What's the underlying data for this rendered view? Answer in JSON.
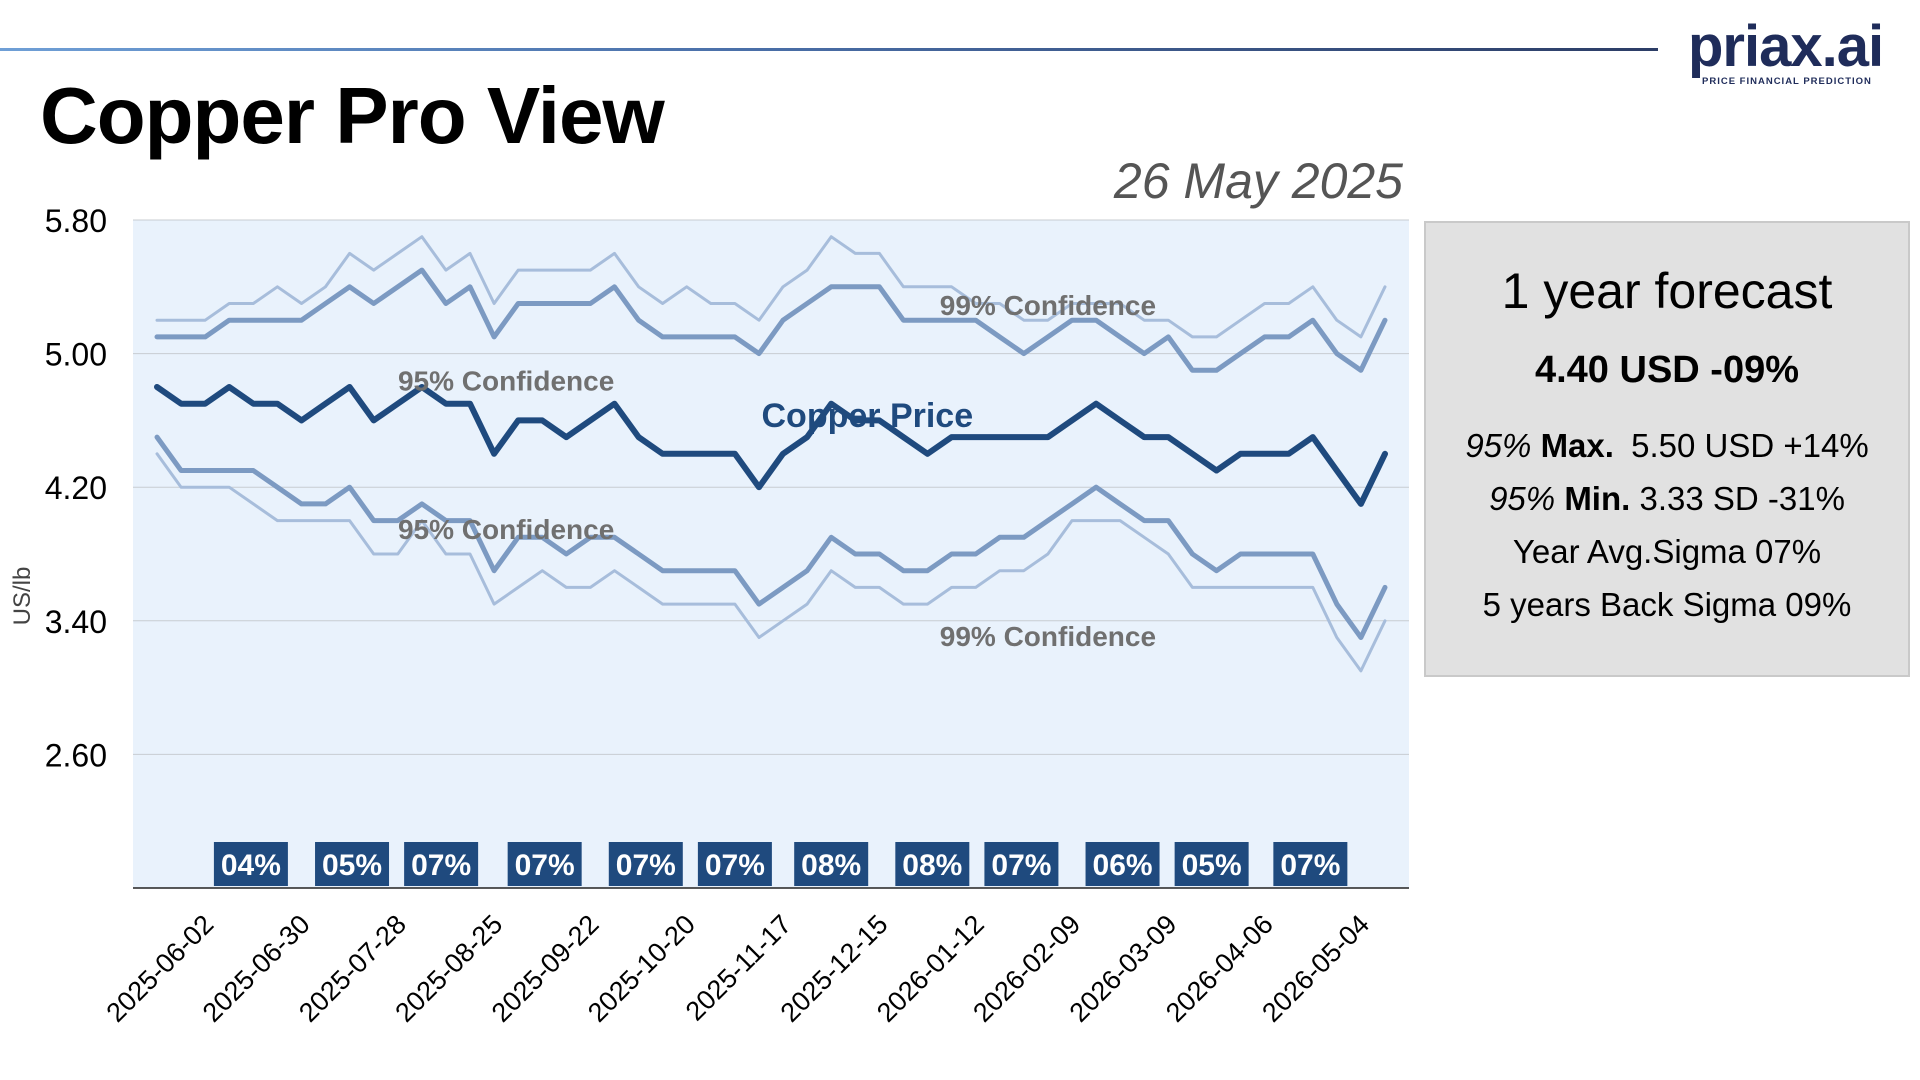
{
  "header": {
    "title": "Copper Pro View",
    "date": "26 May 2025",
    "logo_text": "priax.ai",
    "logo_sub": "PRICE FINANCIAL PREDICTION"
  },
  "forecast": {
    "title": "1 year forecast",
    "main": "4.40 USD -09%",
    "max_pct": "95%",
    "max_label": "Max.",
    "max_value": "5.50 USD +14%",
    "min_pct": "95%",
    "min_label": "Min.",
    "min_value": "3.33 SD -31%",
    "year_avg": "Year Avg.Sigma 07%",
    "back_sigma": "5 years Back Sigma 09%"
  },
  "chart_data": {
    "type": "line",
    "ylabel": "US/lb",
    "ylim": [
      1.8,
      5.8
    ],
    "yticks": [
      "5.80",
      "5.00",
      "4.20",
      "3.40",
      "2.60"
    ],
    "ytick_values": [
      5.8,
      5.0,
      4.2,
      3.4,
      2.6
    ],
    "grid": true,
    "plot_background": "#e9f2fc",
    "xticks": [
      "2025-06-02",
      "2025-06-30",
      "2025-07-28",
      "2025-08-25",
      "2025-09-22",
      "2025-10-20",
      "2025-11-17",
      "2025-12-15",
      "2026-01-12",
      "2026-02-09",
      "2026-03-09",
      "2026-04-06",
      "2026-05-04"
    ],
    "series": [
      {
        "name": "99% Confidence",
        "color": "#a7bddb",
        "values": [
          5.2,
          5.2,
          5.2,
          5.3,
          5.3,
          5.4,
          5.3,
          5.4,
          5.6,
          5.5,
          5.6,
          5.7,
          5.5,
          5.6,
          5.3,
          5.5,
          5.5,
          5.5,
          5.5,
          5.6,
          5.4,
          5.3,
          5.4,
          5.3,
          5.3,
          5.2,
          5.4,
          5.5,
          5.7,
          5.6,
          5.6,
          5.4,
          5.4,
          5.4,
          5.3,
          5.3,
          5.2,
          5.2,
          5.3,
          5.3,
          5.3,
          5.2,
          5.2,
          5.1,
          5.1,
          5.2,
          5.3,
          5.3,
          5.4,
          5.2,
          5.1,
          5.4
        ]
      },
      {
        "name": "95% Confidence",
        "color": "#7c9ac2",
        "values": [
          5.1,
          5.1,
          5.1,
          5.2,
          5.2,
          5.2,
          5.2,
          5.3,
          5.4,
          5.3,
          5.4,
          5.5,
          5.3,
          5.4,
          5.1,
          5.3,
          5.3,
          5.3,
          5.3,
          5.4,
          5.2,
          5.1,
          5.1,
          5.1,
          5.1,
          5.0,
          5.2,
          5.3,
          5.4,
          5.4,
          5.4,
          5.2,
          5.2,
          5.2,
          5.2,
          5.1,
          5.0,
          5.1,
          5.2,
          5.2,
          5.1,
          5.0,
          5.1,
          4.9,
          4.9,
          5.0,
          5.1,
          5.1,
          5.2,
          5.0,
          4.9,
          5.2
        ]
      },
      {
        "name": "Copper Price",
        "color": "#1f4a7e",
        "values": [
          4.8,
          4.7,
          4.7,
          4.8,
          4.7,
          4.7,
          4.6,
          4.7,
          4.8,
          4.6,
          4.7,
          4.8,
          4.7,
          4.7,
          4.4,
          4.6,
          4.6,
          4.5,
          4.6,
          4.7,
          4.5,
          4.4,
          4.4,
          4.4,
          4.4,
          4.2,
          4.4,
          4.5,
          4.7,
          4.6,
          4.6,
          4.5,
          4.4,
          4.5,
          4.5,
          4.5,
          4.5,
          4.5,
          4.6,
          4.7,
          4.6,
          4.5,
          4.5,
          4.4,
          4.3,
          4.4,
          4.4,
          4.4,
          4.5,
          4.3,
          4.1,
          4.4
        ]
      },
      {
        "name": "95% Confidence",
        "color": "#7c9ac2",
        "values": [
          4.5,
          4.3,
          4.3,
          4.3,
          4.3,
          4.2,
          4.1,
          4.1,
          4.2,
          4.0,
          4.0,
          4.1,
          4.0,
          4.0,
          3.7,
          3.9,
          3.9,
          3.8,
          3.9,
          3.9,
          3.8,
          3.7,
          3.7,
          3.7,
          3.7,
          3.5,
          3.6,
          3.7,
          3.9,
          3.8,
          3.8,
          3.7,
          3.7,
          3.8,
          3.8,
          3.9,
          3.9,
          4.0,
          4.1,
          4.2,
          4.1,
          4.0,
          4.0,
          3.8,
          3.7,
          3.8,
          3.8,
          3.8,
          3.8,
          3.5,
          3.3,
          3.6
        ]
      },
      {
        "name": "99% Confidence",
        "color": "#a7bddb",
        "values": [
          4.4,
          4.2,
          4.2,
          4.2,
          4.1,
          4.0,
          4.0,
          4.0,
          4.0,
          3.8,
          3.8,
          4.0,
          3.8,
          3.8,
          3.5,
          3.6,
          3.7,
          3.6,
          3.6,
          3.7,
          3.6,
          3.5,
          3.5,
          3.5,
          3.5,
          3.3,
          3.4,
          3.5,
          3.7,
          3.6,
          3.6,
          3.5,
          3.5,
          3.6,
          3.6,
          3.7,
          3.7,
          3.8,
          4.0,
          4.0,
          4.0,
          3.9,
          3.8,
          3.6,
          3.6,
          3.6,
          3.6,
          3.6,
          3.6,
          3.3,
          3.1,
          3.4
        ]
      }
    ],
    "annotations": [
      {
        "text": "99% Confidence",
        "x_index": 37,
        "y": 5.23,
        "color": "#707070"
      },
      {
        "text": "95% Confidence",
        "x_index": 14.5,
        "y": 4.78,
        "color": "#707070"
      },
      {
        "text": "Copper Price",
        "x_index": 29.5,
        "y": 4.56,
        "color": "#1f4a7e"
      },
      {
        "text": "95% Confidence",
        "x_index": 14.5,
        "y": 3.89,
        "color": "#707070"
      },
      {
        "text": "99% Confidence",
        "x_index": 37,
        "y": 3.25,
        "color": "#707070"
      }
    ],
    "sigma_badges": {
      "color": "#1f4a7e",
      "labels": [
        "04%",
        "05%",
        "07%",
        "07%",
        "07%",
        "07%",
        "08%",
        "08%",
        "07%",
        "06%",
        "05%",
        "07%"
      ],
      "x_index": [
        3.9,
        8.1,
        11.8,
        16.1,
        20.3,
        24.0,
        28.0,
        32.2,
        35.9,
        40.1,
        43.8,
        47.9
      ]
    }
  }
}
